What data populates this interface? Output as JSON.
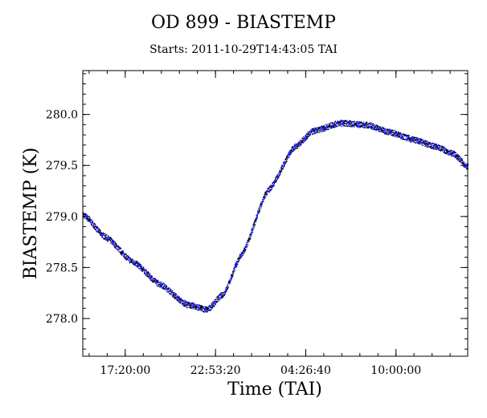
{
  "chart_data": {
    "type": "scatter",
    "title": "OD 899 - BIASTEMP",
    "subtitle": "Starts: 2011-10-29T14:43:05 TAI",
    "xlabel": "Time (TAI)",
    "ylabel": "BIASTEMP (K)",
    "x_tick_labels": [
      "17:20:00",
      "22:53:20",
      "04:26:40",
      "10:00:00"
    ],
    "x_tick_seconds": [
      62400,
      82400,
      102400,
      122400
    ],
    "xlim_seconds": [
      52985,
      138300
    ],
    "y_ticks": [
      278.0,
      278.5,
      279.0,
      279.5,
      280.0
    ],
    "y_tick_labels": [
      "278.0",
      "278.5",
      "279.0",
      "279.5",
      "280.0"
    ],
    "ylim": [
      277.63,
      280.43
    ],
    "series_colors": [
      "#0000cc",
      "#000000"
    ],
    "series": [
      {
        "x_seconds": [
          52985,
          58000,
          64000,
          70000,
          76000,
          80500,
          84000,
          88000,
          94000,
          100000,
          104000,
          110000,
          116000,
          121000,
          126000,
          131000,
          135000,
          138300
        ],
        "values": [
          279.02,
          278.8,
          278.56,
          278.34,
          278.14,
          278.09,
          278.24,
          278.62,
          279.26,
          279.69,
          279.84,
          279.92,
          279.9,
          279.83,
          279.76,
          279.69,
          279.62,
          279.49
        ]
      }
    ],
    "noise_band": 0.06,
    "grid": false
  }
}
